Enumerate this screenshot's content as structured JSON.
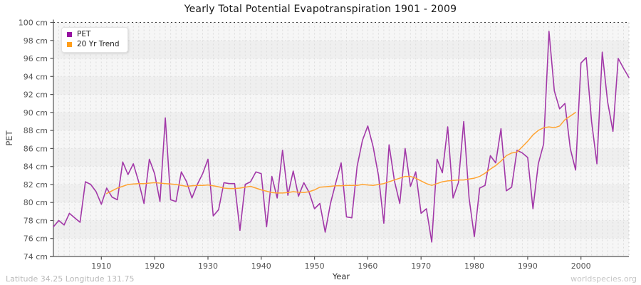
{
  "title": "Yearly Total Potential Evapotranspiration 1901 - 2009",
  "footer": {
    "left": "Latitude 34.25 Longitude 131.75",
    "right": "worldspecies.org"
  },
  "legend": {
    "items": [
      {
        "label": "PET",
        "color": "#9712A2"
      },
      {
        "label": "20 Yr Trend",
        "color": "#FF9E1B"
      }
    ]
  },
  "chart_data": {
    "type": "line",
    "title": "Yearly Total Potential Evapotranspiration 1901 - 2009",
    "xlabel": "Year",
    "ylabel": "PET",
    "x_range": [
      1901,
      2009
    ],
    "ylim": [
      74,
      100
    ],
    "y_ticks": [
      100,
      98,
      96,
      94,
      92,
      90,
      88,
      86,
      84,
      82,
      80,
      78,
      76,
      74
    ],
    "y_tick_suffix": " cm",
    "x_ticks": [
      1910,
      1920,
      1930,
      1940,
      1950,
      1960,
      1970,
      1980,
      1990,
      2000
    ],
    "grid": "yearly vertical dashed lines, 2 cm horizontal dashed lines, alternating gray bands",
    "legend_position": "top-left",
    "series": [
      {
        "name": "PET",
        "color": "#A238A8",
        "width": 1.6,
        "start_year": 1901,
        "values": [
          77.3,
          78.0,
          77.5,
          78.8,
          78.3,
          77.8,
          82.3,
          82.0,
          81.2,
          79.8,
          81.6,
          80.6,
          80.3,
          84.5,
          83.1,
          84.3,
          82.3,
          79.9,
          84.8,
          83.2,
          80.1,
          89.4,
          80.3,
          80.1,
          83.4,
          82.3,
          80.5,
          82.0,
          83.2,
          84.8,
          78.5,
          79.2,
          82.2,
          82.1,
          82.1,
          76.9,
          82.0,
          82.3,
          83.4,
          83.2,
          77.3,
          82.9,
          80.5,
          85.8,
          80.8,
          83.5,
          80.7,
          82.2,
          81.1,
          79.3,
          79.9,
          76.7,
          79.9,
          82.2,
          84.4,
          78.4,
          78.3,
          84.0,
          86.9,
          88.5,
          86.2,
          83.0,
          77.7,
          86.4,
          82.4,
          79.9,
          86.0,
          81.8,
          83.4,
          78.8,
          79.3,
          75.6,
          84.8,
          83.3,
          88.4,
          80.5,
          82.2,
          89.0,
          80.5,
          76.2,
          81.6,
          81.9,
          85.2,
          84.4,
          88.2,
          81.3,
          81.7,
          85.8,
          85.5,
          85.0,
          79.3,
          84.3,
          86.5,
          99.0,
          92.4,
          90.4,
          91.0,
          86.0,
          83.6,
          95.5,
          96.1,
          89.0,
          84.3,
          96.7,
          91.2,
          87.9,
          96.0,
          94.9,
          93.9
        ]
      },
      {
        "name": "20 Yr Trend",
        "color": "#FFA433",
        "width": 1.5,
        "start_year": 1911,
        "values": [
          81.0,
          81.3,
          81.6,
          81.8,
          82.0,
          82.05,
          82.1,
          82.1,
          82.15,
          82.2,
          82.15,
          82.1,
          82.05,
          82.0,
          81.9,
          81.8,
          81.85,
          81.9,
          81.9,
          81.95,
          81.85,
          81.75,
          81.6,
          81.55,
          81.55,
          81.6,
          81.7,
          81.8,
          81.6,
          81.4,
          81.25,
          81.1,
          81.05,
          81.05,
          81.1,
          81.2,
          81.15,
          81.1,
          81.2,
          81.4,
          81.7,
          81.75,
          81.8,
          81.85,
          81.85,
          81.9,
          81.9,
          81.9,
          82.0,
          81.95,
          81.9,
          82.0,
          82.1,
          82.3,
          82.5,
          82.7,
          82.9,
          82.9,
          82.7,
          82.4,
          82.1,
          81.9,
          82.1,
          82.3,
          82.4,
          82.45,
          82.5,
          82.5,
          82.6,
          82.7,
          82.9,
          83.25,
          83.7,
          84.1,
          84.6,
          85.2,
          85.5,
          85.6,
          86.2,
          86.8,
          87.5,
          88.0,
          88.3,
          88.4,
          88.3,
          88.5,
          89.2,
          89.6,
          90.0
        ]
      }
    ]
  }
}
